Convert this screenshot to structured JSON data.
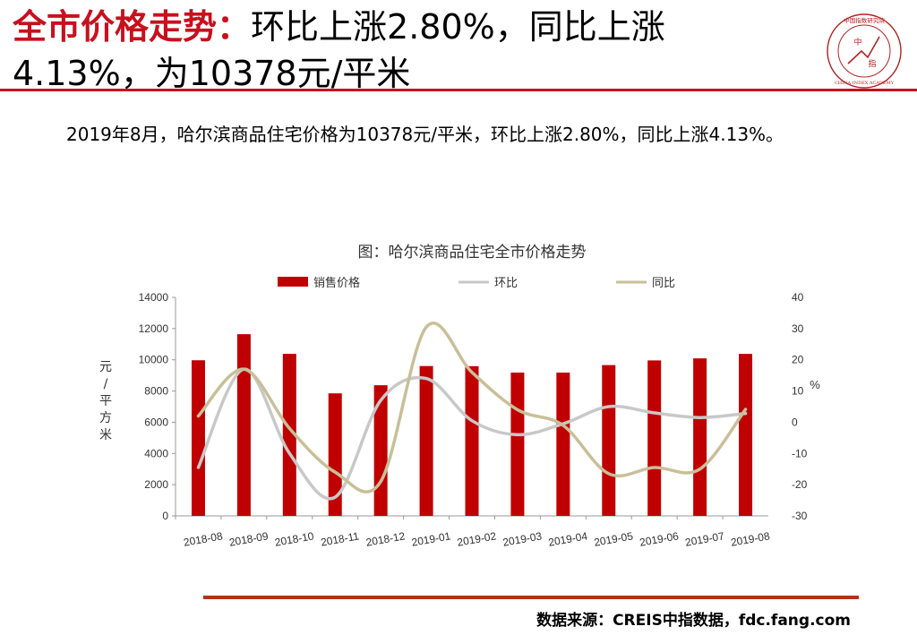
{
  "header": {
    "title_accent": "全市价格走势：",
    "title_line1": "环比上涨2.80%，同比上涨",
    "title_line2": "4.13%，为10378元/平米"
  },
  "logo": {
    "ring_text": "中国指数研究院",
    "center_top": "中",
    "center_bottom": "指",
    "english": "CHINA INDEX ACADEMY",
    "color": "#b22222"
  },
  "summary": "2019年8月，哈尔滨商品住宅价格为10378元/平米，环比上涨2.80%，同比上涨4.13%。",
  "chart_data": {
    "type": "bar",
    "title": "图：哈尔滨商品住宅全市价格走势",
    "categories": [
      "2018-08",
      "2018-09",
      "2018-10",
      "2018-11",
      "2018-12",
      "2019-01",
      "2019-02",
      "2019-03",
      "2019-04",
      "2019-05",
      "2019-06",
      "2019-07",
      "2019-08"
    ],
    "series": [
      {
        "name": "销售价格",
        "kind": "bar",
        "axis": "left",
        "color": "#c00000",
        "values": [
          9970,
          11640,
          10380,
          7850,
          8370,
          9600,
          9590,
          9180,
          9180,
          9660,
          9960,
          10090,
          10378
        ]
      },
      {
        "name": "环比",
        "kind": "line",
        "axis": "right",
        "color": "#c8c8c8",
        "values": [
          -14.5,
          17.0,
          -10.0,
          -24.0,
          7.0,
          14.0,
          0.5,
          -4.0,
          -0.5,
          5.0,
          3.0,
          1.5,
          2.8
        ]
      },
      {
        "name": "同比",
        "kind": "line",
        "axis": "right",
        "color": "#c9bf98",
        "values": [
          2.0,
          17.0,
          -2.0,
          -16.0,
          -19.0,
          30.5,
          16.0,
          4.0,
          -1.0,
          -16.5,
          -14.5,
          -15.0,
          4.13
        ]
      }
    ],
    "ylabel": "元/平方米",
    "y2label": "%",
    "ylim": [
      0,
      14000
    ],
    "yticks": [
      0,
      2000,
      4000,
      6000,
      8000,
      10000,
      12000,
      14000
    ],
    "y2lim": [
      -30,
      40
    ],
    "y2ticks": [
      -30,
      -20,
      -10,
      0,
      10,
      20,
      30,
      40
    ],
    "legend_position": "top",
    "grid": false
  },
  "source": "数据来源：CREIS中指数据，fdc.fang.com"
}
